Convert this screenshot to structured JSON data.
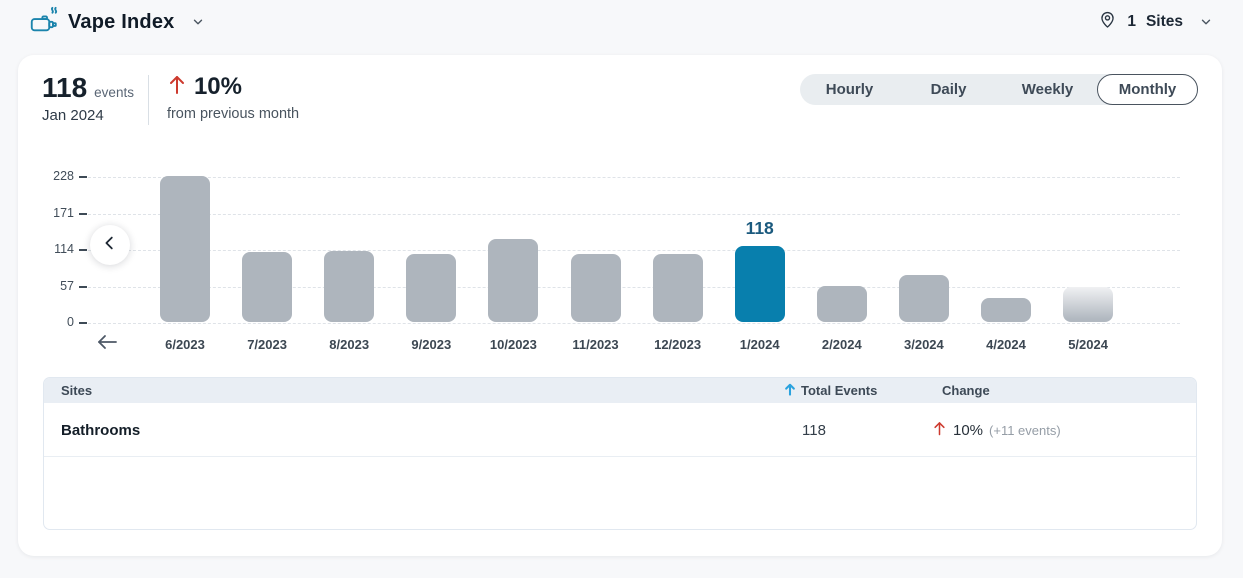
{
  "header": {
    "title": "Vape Index",
    "sites_count": "1",
    "sites_label": "Sites"
  },
  "summary": {
    "value": "118",
    "value_unit": "events",
    "period": "Jan 2024",
    "change_direction": "up",
    "change_pct": "10%",
    "change_caption": "from previous month"
  },
  "tabs": [
    {
      "label": "Hourly",
      "selected": false
    },
    {
      "label": "Daily",
      "selected": false
    },
    {
      "label": "Weekly",
      "selected": false
    },
    {
      "label": "Monthly",
      "selected": true
    }
  ],
  "chart_data": {
    "type": "bar",
    "title": "Vape Index monthly events",
    "categories": [
      "6/2023",
      "7/2023",
      "8/2023",
      "9/2023",
      "10/2023",
      "11/2023",
      "12/2023",
      "1/2024",
      "2/2024",
      "3/2024",
      "4/2024",
      "5/2024"
    ],
    "values": [
      228,
      110,
      111,
      106,
      129,
      106,
      106,
      118,
      56,
      73,
      37,
      55
    ],
    "y_ticks": [
      0,
      57,
      114,
      171,
      228
    ],
    "ylim": [
      0,
      228
    ],
    "grid": true,
    "highlight_index": 7,
    "highlight_label": "118",
    "partial_index": 11,
    "bar_color": "#aeb5bd",
    "highlight_color": "#087fad"
  },
  "table": {
    "columns": {
      "sites": "Sites",
      "total_events": "Total Events",
      "change": "Change"
    },
    "sort": {
      "column": "total_events",
      "direction": "asc"
    },
    "rows": [
      {
        "site": "Bathrooms",
        "total_events": "118",
        "change_direction": "up",
        "change_pct": "10%",
        "change_detail": "(+11 events)"
      }
    ]
  },
  "colors": {
    "accent_teal": "#087fad",
    "bar_gray": "#aeb5bd",
    "negative_red": "#cd3a2e",
    "sort_blue": "#2aa2de"
  }
}
